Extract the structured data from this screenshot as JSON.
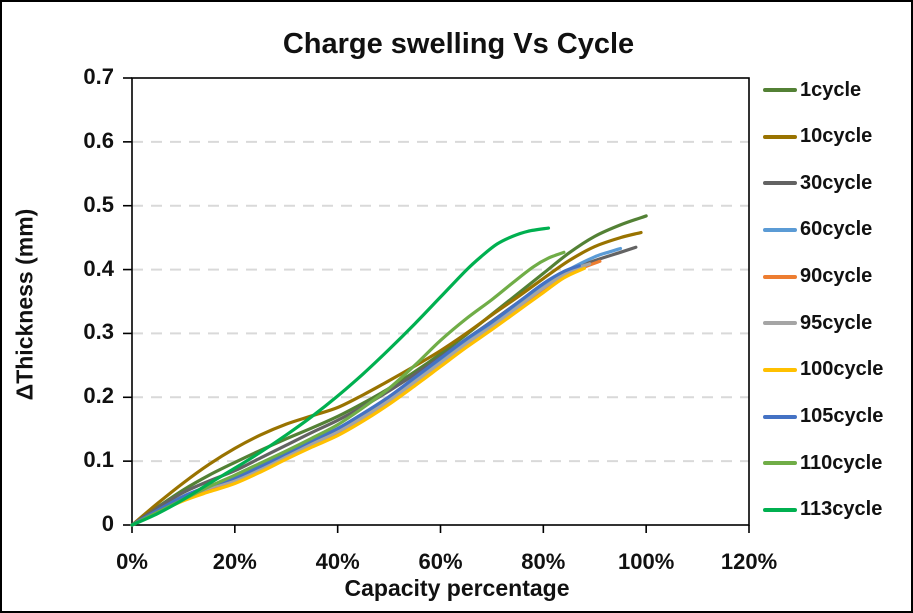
{
  "chart": {
    "background": "#ffffff",
    "border_color": "#000000",
    "gridline_color": "#d9d9d9",
    "axis_color": "#000000",
    "text_color": "#111111"
  },
  "chart_data": {
    "type": "line",
    "title": "Charge swelling Vs Cycle",
    "xlabel": "Capacity percentage",
    "ylabel": "ΔThickness (mm)",
    "xlim": [
      0,
      120
    ],
    "ylim": [
      0,
      0.7
    ],
    "x_unit": "percent",
    "grid": "horizontal dashed",
    "legend_position": "right",
    "x_ticks": [
      {
        "v": 0,
        "label": "0%"
      },
      {
        "v": 20,
        "label": "20%"
      },
      {
        "v": 40,
        "label": "40%"
      },
      {
        "v": 60,
        "label": "60%"
      },
      {
        "v": 80,
        "label": "80%"
      },
      {
        "v": 100,
        "label": "100%"
      },
      {
        "v": 120,
        "label": "120%"
      }
    ],
    "y_ticks": [
      {
        "v": 0.0,
        "label": "0"
      },
      {
        "v": 0.1,
        "label": "0.1"
      },
      {
        "v": 0.2,
        "label": "0.2"
      },
      {
        "v": 0.3,
        "label": "0.3"
      },
      {
        "v": 0.4,
        "label": "0.4"
      },
      {
        "v": 0.5,
        "label": "0.5"
      },
      {
        "v": 0.6,
        "label": "0.6"
      },
      {
        "v": 0.7,
        "label": "0.7"
      }
    ],
    "series": [
      {
        "name": "1cycle",
        "color": "#538135",
        "points": [
          [
            0,
            0
          ],
          [
            5,
            0.028
          ],
          [
            10,
            0.055
          ],
          [
            15,
            0.078
          ],
          [
            20,
            0.098
          ],
          [
            25,
            0.117
          ],
          [
            30,
            0.135
          ],
          [
            35,
            0.152
          ],
          [
            40,
            0.17
          ],
          [
            45,
            0.191
          ],
          [
            50,
            0.214
          ],
          [
            55,
            0.24
          ],
          [
            60,
            0.268
          ],
          [
            65,
            0.298
          ],
          [
            70,
            0.33
          ],
          [
            75,
            0.362
          ],
          [
            80,
            0.394
          ],
          [
            85,
            0.426
          ],
          [
            90,
            0.452
          ],
          [
            95,
            0.47
          ],
          [
            100,
            0.484
          ]
        ]
      },
      {
        "name": "10cycle",
        "color": "#997300",
        "points": [
          [
            0,
            0
          ],
          [
            5,
            0.034
          ],
          [
            10,
            0.066
          ],
          [
            15,
            0.095
          ],
          [
            20,
            0.12
          ],
          [
            25,
            0.141
          ],
          [
            30,
            0.158
          ],
          [
            35,
            0.171
          ],
          [
            40,
            0.184
          ],
          [
            45,
            0.204
          ],
          [
            50,
            0.226
          ],
          [
            55,
            0.249
          ],
          [
            60,
            0.273
          ],
          [
            65,
            0.3
          ],
          [
            70,
            0.329
          ],
          [
            75,
            0.357
          ],
          [
            80,
            0.386
          ],
          [
            85,
            0.414
          ],
          [
            90,
            0.436
          ],
          [
            95,
            0.45
          ],
          [
            99,
            0.458
          ]
        ]
      },
      {
        "name": "30cycle",
        "color": "#636363",
        "points": [
          [
            0,
            0
          ],
          [
            5,
            0.027
          ],
          [
            10,
            0.051
          ],
          [
            15,
            0.069
          ],
          [
            20,
            0.085
          ],
          [
            25,
            0.105
          ],
          [
            30,
            0.125
          ],
          [
            35,
            0.145
          ],
          [
            40,
            0.164
          ],
          [
            45,
            0.186
          ],
          [
            50,
            0.21
          ],
          [
            55,
            0.236
          ],
          [
            60,
            0.263
          ],
          [
            65,
            0.291
          ],
          [
            70,
            0.319
          ],
          [
            75,
            0.348
          ],
          [
            80,
            0.376
          ],
          [
            85,
            0.399
          ],
          [
            90,
            0.414
          ],
          [
            95,
            0.427
          ],
          [
            98,
            0.435
          ]
        ]
      },
      {
        "name": "60cycle",
        "color": "#5B9BD5",
        "points": [
          [
            0,
            0
          ],
          [
            5,
            0.022
          ],
          [
            10,
            0.042
          ],
          [
            15,
            0.058
          ],
          [
            20,
            0.072
          ],
          [
            25,
            0.09
          ],
          [
            30,
            0.11
          ],
          [
            35,
            0.13
          ],
          [
            40,
            0.149
          ],
          [
            45,
            0.172
          ],
          [
            50,
            0.198
          ],
          [
            55,
            0.227
          ],
          [
            60,
            0.257
          ],
          [
            65,
            0.287
          ],
          [
            70,
            0.314
          ],
          [
            75,
            0.344
          ],
          [
            80,
            0.374
          ],
          [
            85,
            0.4
          ],
          [
            90,
            0.42
          ],
          [
            93,
            0.428
          ],
          [
            95,
            0.433
          ]
        ]
      },
      {
        "name": "90cycle",
        "color": "#ED7D31",
        "points": [
          [
            0,
            0
          ],
          [
            5,
            0.021
          ],
          [
            10,
            0.04
          ],
          [
            15,
            0.055
          ],
          [
            20,
            0.068
          ],
          [
            25,
            0.086
          ],
          [
            30,
            0.106
          ],
          [
            35,
            0.125
          ],
          [
            40,
            0.143
          ],
          [
            45,
            0.166
          ],
          [
            50,
            0.192
          ],
          [
            55,
            0.221
          ],
          [
            60,
            0.251
          ],
          [
            65,
            0.281
          ],
          [
            70,
            0.309
          ],
          [
            75,
            0.338
          ],
          [
            80,
            0.367
          ],
          [
            85,
            0.393
          ],
          [
            88,
            0.404
          ],
          [
            91,
            0.413
          ]
        ]
      },
      {
        "name": "95cycle",
        "color": "#A5A5A5",
        "points": [
          [
            0,
            0
          ],
          [
            5,
            0.022
          ],
          [
            10,
            0.043
          ],
          [
            15,
            0.058
          ],
          [
            20,
            0.07
          ],
          [
            25,
            0.088
          ],
          [
            30,
            0.108
          ],
          [
            35,
            0.127
          ],
          [
            40,
            0.146
          ],
          [
            45,
            0.169
          ],
          [
            50,
            0.195
          ],
          [
            55,
            0.224
          ],
          [
            60,
            0.254
          ],
          [
            65,
            0.284
          ],
          [
            70,
            0.311
          ],
          [
            75,
            0.341
          ],
          [
            80,
            0.371
          ],
          [
            85,
            0.397
          ],
          [
            89,
            0.409
          ]
        ]
      },
      {
        "name": "100cycle",
        "color": "#FFC000",
        "points": [
          [
            0,
            0
          ],
          [
            5,
            0.02
          ],
          [
            10,
            0.038
          ],
          [
            15,
            0.052
          ],
          [
            20,
            0.065
          ],
          [
            25,
            0.083
          ],
          [
            30,
            0.103
          ],
          [
            35,
            0.122
          ],
          [
            40,
            0.14
          ],
          [
            45,
            0.163
          ],
          [
            50,
            0.189
          ],
          [
            55,
            0.218
          ],
          [
            60,
            0.248
          ],
          [
            65,
            0.278
          ],
          [
            70,
            0.306
          ],
          [
            75,
            0.335
          ],
          [
            80,
            0.364
          ],
          [
            84,
            0.387
          ],
          [
            88,
            0.402
          ]
        ]
      },
      {
        "name": "105cycle",
        "color": "#4472C4",
        "points": [
          [
            0,
            0
          ],
          [
            5,
            0.023
          ],
          [
            10,
            0.045
          ],
          [
            15,
            0.061
          ],
          [
            20,
            0.074
          ],
          [
            25,
            0.092
          ],
          [
            30,
            0.112
          ],
          [
            35,
            0.132
          ],
          [
            40,
            0.151
          ],
          [
            45,
            0.175
          ],
          [
            50,
            0.201
          ],
          [
            55,
            0.231
          ],
          [
            60,
            0.261
          ],
          [
            65,
            0.291
          ],
          [
            70,
            0.318
          ],
          [
            75,
            0.348
          ],
          [
            80,
            0.378
          ],
          [
            84,
            0.397
          ],
          [
            87,
            0.406
          ]
        ]
      },
      {
        "name": "110cycle",
        "color": "#70AD47",
        "points": [
          [
            0,
            0
          ],
          [
            5,
            0.02
          ],
          [
            10,
            0.04
          ],
          [
            15,
            0.06
          ],
          [
            20,
            0.078
          ],
          [
            25,
            0.097
          ],
          [
            30,
            0.116
          ],
          [
            35,
            0.136
          ],
          [
            40,
            0.157
          ],
          [
            45,
            0.184
          ],
          [
            50,
            0.214
          ],
          [
            55,
            0.25
          ],
          [
            60,
            0.289
          ],
          [
            65,
            0.323
          ],
          [
            70,
            0.353
          ],
          [
            74,
            0.379
          ],
          [
            78,
            0.404
          ],
          [
            81,
            0.418
          ],
          [
            84,
            0.427
          ]
        ]
      },
      {
        "name": "113cycle",
        "color": "#00B050",
        "points": [
          [
            0,
            0
          ],
          [
            5,
            0.018
          ],
          [
            10,
            0.04
          ],
          [
            15,
            0.065
          ],
          [
            20,
            0.089
          ],
          [
            25,
            0.114
          ],
          [
            30,
            0.141
          ],
          [
            35,
            0.17
          ],
          [
            40,
            0.202
          ],
          [
            45,
            0.237
          ],
          [
            50,
            0.275
          ],
          [
            55,
            0.315
          ],
          [
            60,
            0.357
          ],
          [
            65,
            0.399
          ],
          [
            68,
            0.421
          ],
          [
            71,
            0.44
          ],
          [
            74,
            0.452
          ],
          [
            77,
            0.46
          ],
          [
            81,
            0.465
          ]
        ]
      }
    ]
  }
}
